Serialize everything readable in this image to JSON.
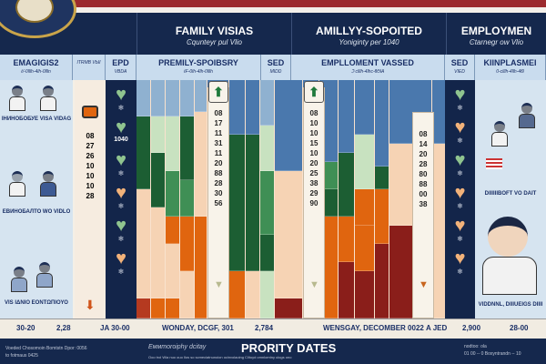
{
  "header": {
    "family": {
      "title": "FAMILY VISIAS",
      "sub": "Ͼqunteyr pul Vlio"
    },
    "sponsored": {
      "title": "AMILLYY-SOPOITED",
      "sub": "Yoniginty per 1040"
    },
    "employment": {
      "title": "EMPLOYMEN",
      "sub": "Ͼtarnegr ow Vlio"
    }
  },
  "subheader": [
    {
      "title": "EMAGIGIS2",
      "sub": "ℓ/-0lllh-4lh-0llln"
    },
    {
      "title": "",
      "sub": "ІTRMB VЫI"
    },
    {
      "title": "EPD",
      "sub": "VBDA"
    },
    {
      "title": "PREMILY-SPOIBSRY",
      "sub": "ℓF-0lh-4lh-0lllh"
    },
    {
      "title": "SED",
      "sub": "MIDD"
    },
    {
      "title": "EMPLLOMENT VASSED",
      "sub": "ℑ ϲlllh-4lhc-ϐϬlA"
    },
    {
      "title": "SED",
      "sub": "VIED"
    },
    {
      "title": "KIINPLASMEI",
      "sub": "0-ϲlllh-4llh-4ϐl"
    }
  ],
  "left_panel": {
    "labels": [
      "ІНИНОБОБУЕ VISA VIDAG",
      "ЕВИНОБАЛТО WO VIDLO",
      "VIS ΙΔΝΙΟ ΕΟΝΤΩΠΙΟΥΟ"
    ]
  },
  "right_panel": {
    "labels": [
      "DIIIIIIBOFT VO DAIT",
      "VIDDNNL, DIIIUEIGS DIIII"
    ]
  },
  "num_column": {
    "items": [
      "08",
      "27",
      "26",
      "10",
      "10",
      "10",
      "28"
    ]
  },
  "hearts_mid_label": "1040",
  "strips": [
    {
      "items": [
        "08",
        "17",
        "11",
        "31",
        "11",
        "20",
        "88",
        "28",
        "30",
        "56"
      ]
    },
    {
      "items": [
        "08",
        "10",
        "10",
        "15",
        "10",
        "20",
        "25",
        "38",
        "29",
        "90"
      ]
    },
    {
      "items": [
        "08",
        "14",
        "20",
        "28",
        "80",
        "88",
        "00",
        "38"
      ]
    }
  ],
  "bottom_row": [
    "30-20",
    "2,28",
    "JA 30-00",
    "WONDAY, DCGF, 301",
    "2,784",
    "WENSGAY, DECOMBER 0022",
    "A JED",
    "2,900",
    "28-00"
  ],
  "footer": {
    "title": "PRORITY DATES",
    "left": [
      "Voeded Chosomoin Bomtstn Dpor: 0056",
      "to fotmaus 0425"
    ],
    "center_italic": "Eммmoroiphy dcitay",
    "center_line": "Ooo trol Wia nuo ouo  Ilos so scmeciatnunoion ocinvolaoing  Clitoyd omnlomtny ulogs ono",
    "right": [
      "nodtoo: ola",
      "01 00 -- 0 Boxyntrandn -- 10"
    ]
  },
  "palette": {
    "navy": "#13254a",
    "blue": "#4a78ad",
    "green": "#1c5e33",
    "peach": "#f6d3b4",
    "orange": "#e0650f",
    "red": "#8a1e1a"
  }
}
